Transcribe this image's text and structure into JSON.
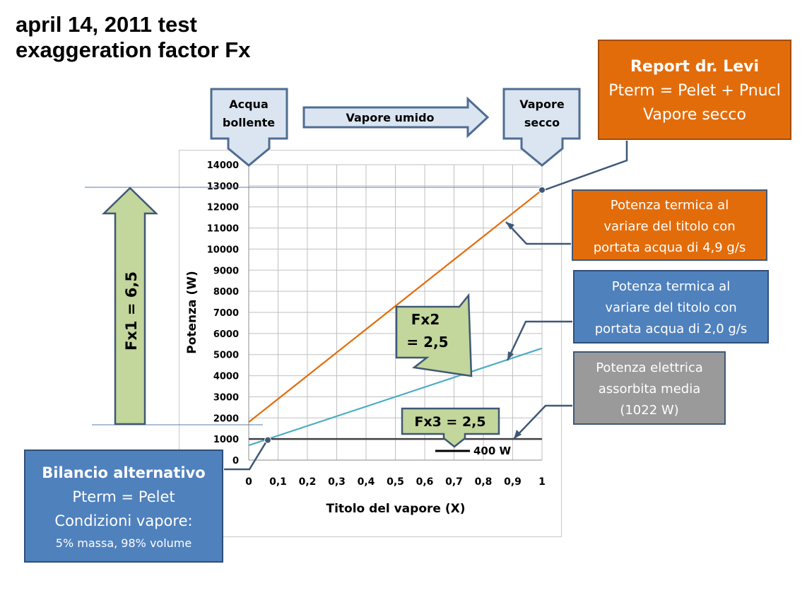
{
  "header": {
    "title_line1": "april 14, 2011 test",
    "title_line2": "exaggeration factor Fx"
  },
  "phases": {
    "left": [
      "Acqua",
      "bollente"
    ],
    "middle": "Vapore umido",
    "right": [
      "Vapore",
      "secco"
    ]
  },
  "callouts": {
    "levi": [
      "Report dr. Levi",
      "Pterm = Pelet + Pnucl",
      "Vapore secco"
    ],
    "orange": [
      "Potenza termica al",
      "variare del titolo con",
      "portata acqua di 4,9 g/s"
    ],
    "blue": [
      "Potenza termica al",
      "variare del titolo con",
      "portata acqua di 2,0 g/s"
    ],
    "gray": [
      "Potenza elettrica",
      "assorbita media",
      "(1022 W)"
    ],
    "alt": [
      "Bilancio alternativo",
      "Pterm = Pelet",
      "Condizioni vapore:",
      "5% massa, 98% volume"
    ]
  },
  "factors": {
    "fx1": "Fx1 = 6,5",
    "fx2": [
      "Fx2",
      "= 2,5"
    ],
    "fx3": "Fx3 = 2,5",
    "w400": "400 W"
  },
  "colors": {
    "orange": "#e36c0a",
    "teal": "#4bacc6",
    "black_line": "#404040",
    "green_arrow": "#c3d69b",
    "phase_box": "#dbe5f1",
    "blue": "#4f81bd",
    "gray": "#9a9a9a"
  },
  "chart_data": {
    "type": "line",
    "xlabel": "Titolo del vapore (X)",
    "ylabel": "Potenza (W)",
    "xlim": [
      0,
      1
    ],
    "ylim": [
      0,
      14000
    ],
    "x_ticks": [
      "0",
      "0,1",
      "0,2",
      "0,3",
      "0,4",
      "0,5",
      "0,6",
      "0,7",
      "0,8",
      "0,9",
      "1"
    ],
    "y_ticks": [
      0,
      1000,
      2000,
      3000,
      4000,
      5000,
      6000,
      7000,
      8000,
      9000,
      10000,
      11000,
      12000,
      13000,
      14000
    ],
    "grid": true,
    "series": [
      {
        "x": [
          0,
          1
        ],
        "values": [
          1800,
          12800
        ],
        "color": "#e36c0a"
      },
      {
        "x": [
          0,
          1
        ],
        "values": [
          700,
          5300
        ],
        "color": "#4bacc6"
      },
      {
        "x": [
          0,
          1
        ],
        "values": [
          1000,
          1000
        ],
        "color": "#404040"
      }
    ],
    "markers": [
      {
        "x": 1.0,
        "y": 12800
      },
      {
        "x": 0.065,
        "y": 950
      }
    ]
  }
}
